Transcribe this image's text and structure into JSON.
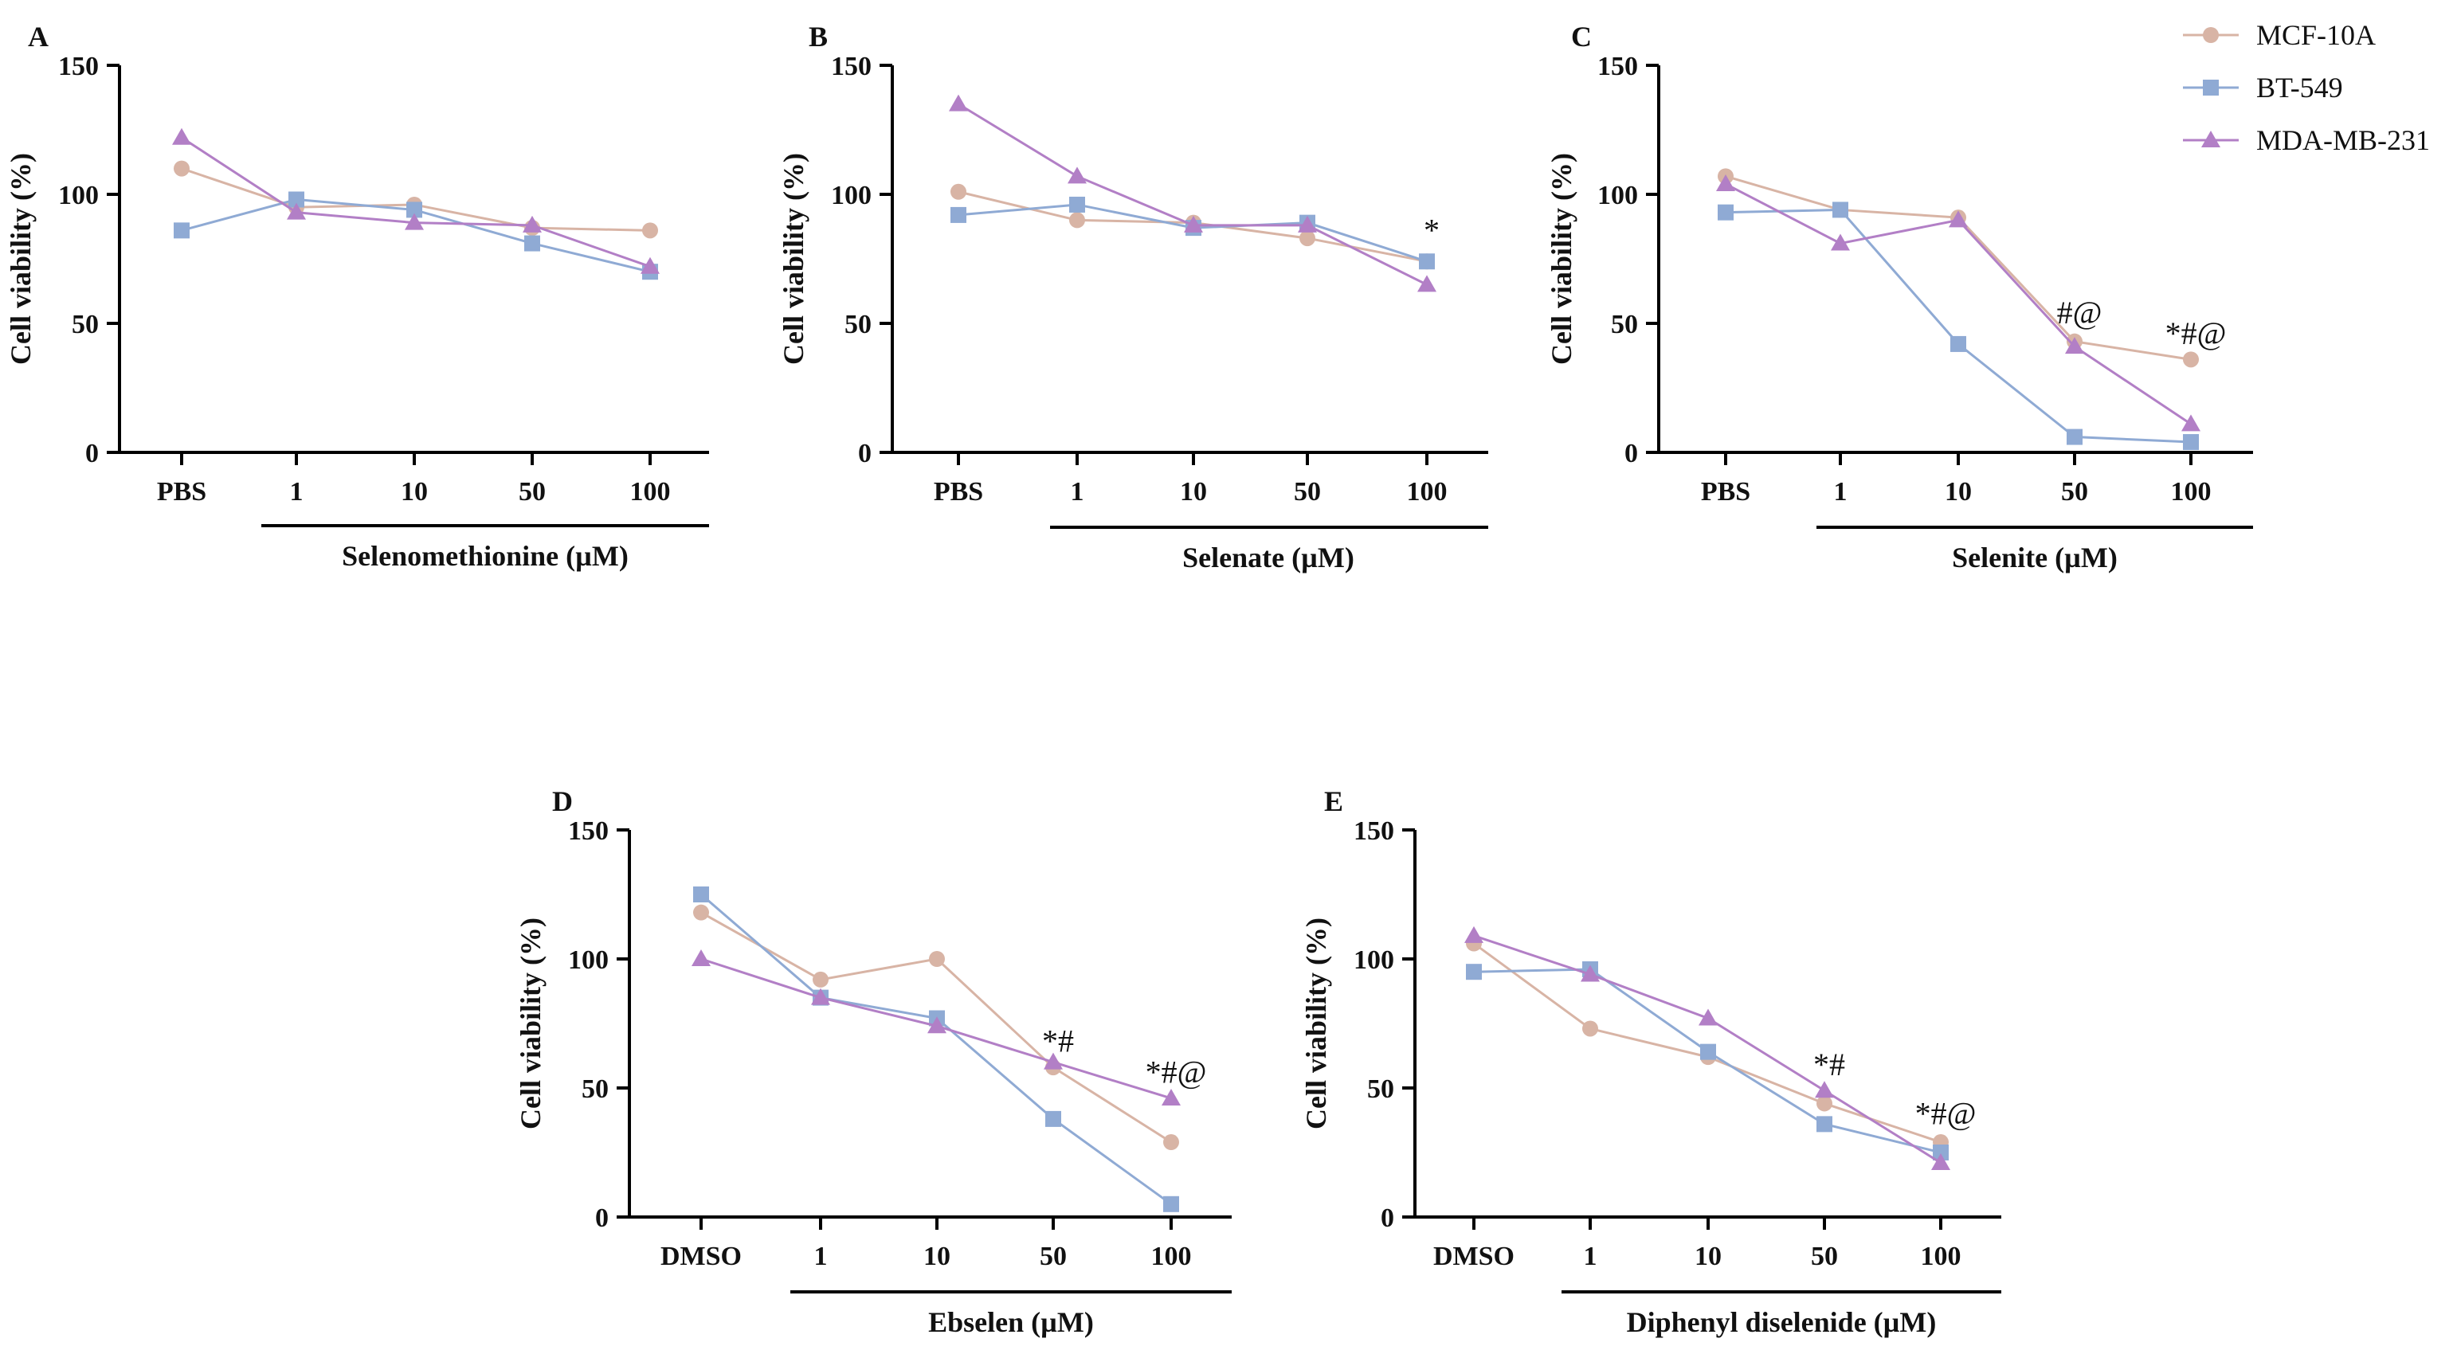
{
  "legend": [
    {
      "name": "MCF-10A",
      "marker": "circle",
      "color": "#d8b4a5"
    },
    {
      "name": "BT-549",
      "marker": "square",
      "color": "#8faad4"
    },
    {
      "name": "MDA-MB-231",
      "marker": "triangle",
      "color": "#b27fc6"
    }
  ],
  "chart_data": [
    {
      "panel": "A",
      "type": "line",
      "ylabel": "Cell viability (%)",
      "ylim": [
        0,
        150
      ],
      "yticks": [
        0,
        50,
        100,
        150
      ],
      "categories": [
        "PBS",
        "1",
        "10",
        "50",
        "100"
      ],
      "group_label": "Selenomethionine (µM)",
      "series": [
        {
          "name": "MCF-10A",
          "values": [
            110,
            95,
            96,
            87,
            86
          ]
        },
        {
          "name": "BT-549",
          "values": [
            86,
            98,
            94,
            81,
            70
          ]
        },
        {
          "name": "MDA-MB-231",
          "values": [
            122,
            93,
            89,
            88,
            72
          ]
        }
      ],
      "annotations": []
    },
    {
      "panel": "B",
      "type": "line",
      "ylabel": "Cell viability (%)",
      "ylim": [
        0,
        150
      ],
      "yticks": [
        0,
        50,
        100,
        150
      ],
      "categories": [
        "PBS",
        "1",
        "10",
        "50",
        "100"
      ],
      "group_label": "Selenate (µM)",
      "series": [
        {
          "name": "MCF-10A",
          "values": [
            101,
            90,
            89,
            83,
            74
          ]
        },
        {
          "name": "BT-549",
          "values": [
            92,
            96,
            87,
            89,
            74
          ]
        },
        {
          "name": "MDA-MB-231",
          "values": [
            135,
            107,
            88,
            88,
            65
          ]
        }
      ],
      "annotations": [
        {
          "category": "100",
          "y": 82,
          "text": "*"
        }
      ]
    },
    {
      "panel": "C",
      "type": "line",
      "ylabel": "Cell viability (%)",
      "ylim": [
        0,
        150
      ],
      "yticks": [
        0,
        50,
        100,
        150
      ],
      "categories": [
        "PBS",
        "1",
        "10",
        "50",
        "100"
      ],
      "group_label": "Selenite (µM)",
      "series": [
        {
          "name": "MCF-10A",
          "values": [
            107,
            94,
            91,
            43,
            36
          ]
        },
        {
          "name": "BT-549",
          "values": [
            93,
            94,
            42,
            6,
            4
          ]
        },
        {
          "name": "MDA-MB-231",
          "values": [
            104,
            81,
            90,
            41,
            11
          ]
        }
      ],
      "annotations": [
        {
          "category": "50",
          "y": 50,
          "text": "#@"
        },
        {
          "category": "100",
          "y": 42,
          "text": "*#@"
        }
      ]
    },
    {
      "panel": "D",
      "type": "line",
      "ylabel": "Cell viability (%)",
      "ylim": [
        0,
        150
      ],
      "yticks": [
        0,
        50,
        100,
        150
      ],
      "categories": [
        "DMSO",
        "1",
        "10",
        "50",
        "100"
      ],
      "group_label": "Ebselen (µM)",
      "series": [
        {
          "name": "MCF-10A",
          "values": [
            118,
            92,
            100,
            58,
            29
          ]
        },
        {
          "name": "BT-549",
          "values": [
            125,
            85,
            77,
            38,
            5
          ]
        },
        {
          "name": "MDA-MB-231",
          "values": [
            100,
            85,
            74,
            60,
            46
          ]
        }
      ],
      "annotations": [
        {
          "category": "50",
          "y": 64,
          "text": "*#"
        },
        {
          "category": "100",
          "y": 52,
          "text": "*#@"
        }
      ]
    },
    {
      "panel": "E",
      "type": "line",
      "ylabel": "Cell viability (%)",
      "ylim": [
        0,
        150
      ],
      "yticks": [
        0,
        50,
        100,
        150
      ],
      "categories": [
        "DMSO",
        "1",
        "10",
        "50",
        "100"
      ],
      "group_label": "Diphenyl diselenide (µM)",
      "series": [
        {
          "name": "MCF-10A",
          "values": [
            106,
            73,
            62,
            44,
            29
          ]
        },
        {
          "name": "BT-549",
          "values": [
            95,
            96,
            64,
            36,
            25
          ]
        },
        {
          "name": "MDA-MB-231",
          "values": [
            109,
            94,
            77,
            49,
            21
          ]
        }
      ],
      "annotations": [
        {
          "category": "50",
          "y": 55,
          "text": "*#"
        },
        {
          "category": "100",
          "y": 36,
          "text": "*#@"
        }
      ]
    }
  ]
}
